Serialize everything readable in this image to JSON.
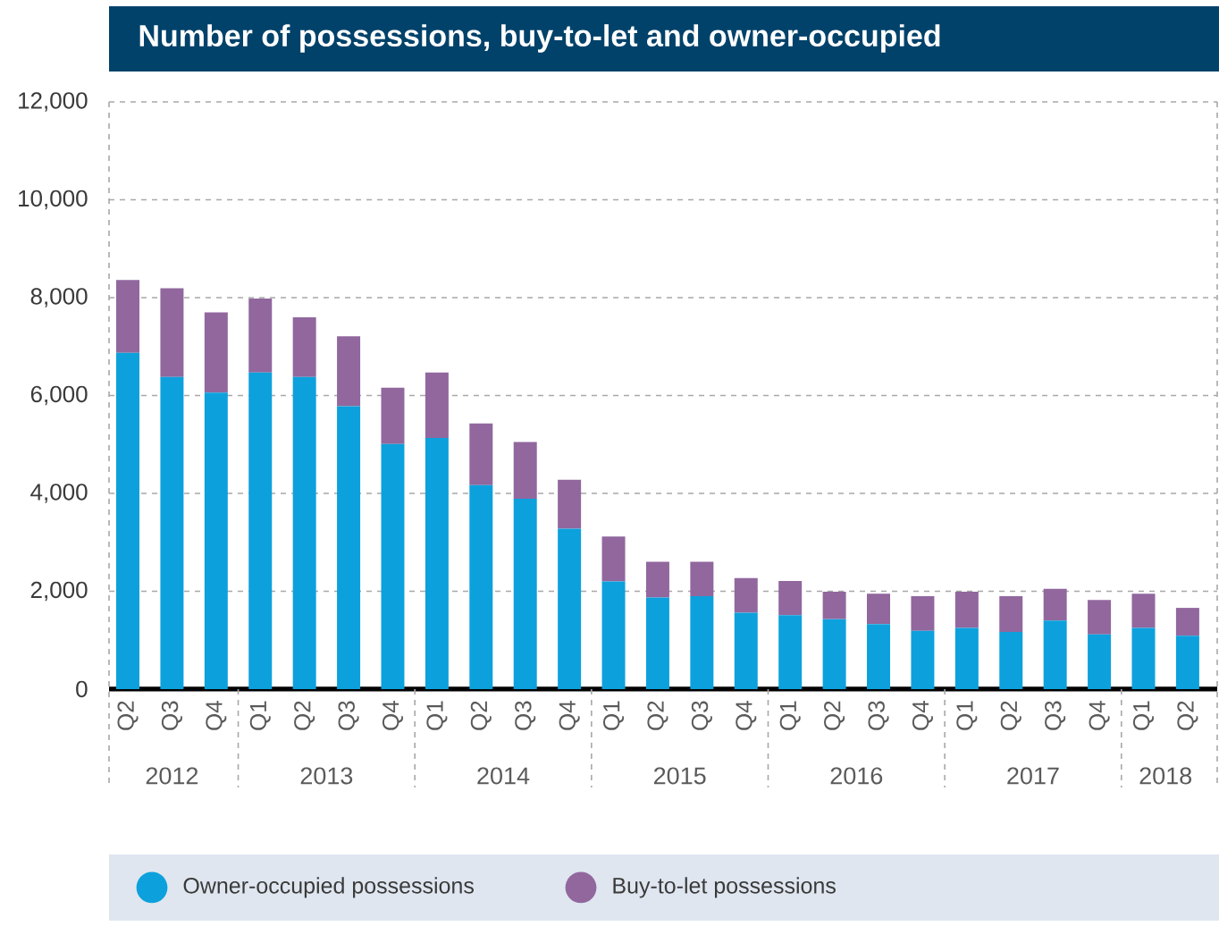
{
  "chart_data": {
    "type": "bar",
    "title": "Number of possessions, buy-to-let and owner-occupied",
    "categories": [
      "Q2",
      "Q3",
      "Q4",
      "Q1",
      "Q2",
      "Q3",
      "Q4",
      "Q1",
      "Q2",
      "Q3",
      "Q4",
      "Q1",
      "Q2",
      "Q3",
      "Q4",
      "Q1",
      "Q2",
      "Q3",
      "Q4",
      "Q1",
      "Q2",
      "Q3",
      "Q4",
      "Q1",
      "Q2"
    ],
    "stacked": true,
    "series": [
      {
        "name": "Owner-occupied possessions",
        "color": "#0ca1dc",
        "values": [
          6870,
          6380,
          6060,
          6470,
          6380,
          5780,
          5010,
          5130,
          4170,
          3890,
          3280,
          2200,
          1870,
          1900,
          1560,
          1510,
          1430,
          1330,
          1190,
          1250,
          1170,
          1400,
          1120,
          1250,
          1090
        ]
      },
      {
        "name": "Buy-to-let possessions",
        "color": "#91679e",
        "values": [
          1490,
          1810,
          1640,
          1510,
          1220,
          1430,
          1150,
          1340,
          1260,
          1160,
          1000,
          920,
          730,
          700,
          710,
          700,
          560,
          620,
          710,
          740,
          730,
          650,
          700,
          700,
          570
        ]
      }
    ],
    "ylim": [
      0,
      12000
    ],
    "yticks": [
      0,
      {
        "value": 2000,
        "label": "2,000"
      },
      {
        "value": 4000,
        "label": "4,000"
      },
      {
        "value": 6000,
        "label": "6,000"
      },
      {
        "value": 8000,
        "label": "8,000"
      },
      {
        "value": 10000,
        "label": "10,000"
      },
      {
        "value": 12000,
        "label": "12,000"
      }
    ],
    "grid": "y",
    "legend": "bottom",
    "annotations": [
      "2012",
      "2013",
      "2014",
      "2015",
      "2016",
      "2017",
      "2018"
    ]
  }
}
